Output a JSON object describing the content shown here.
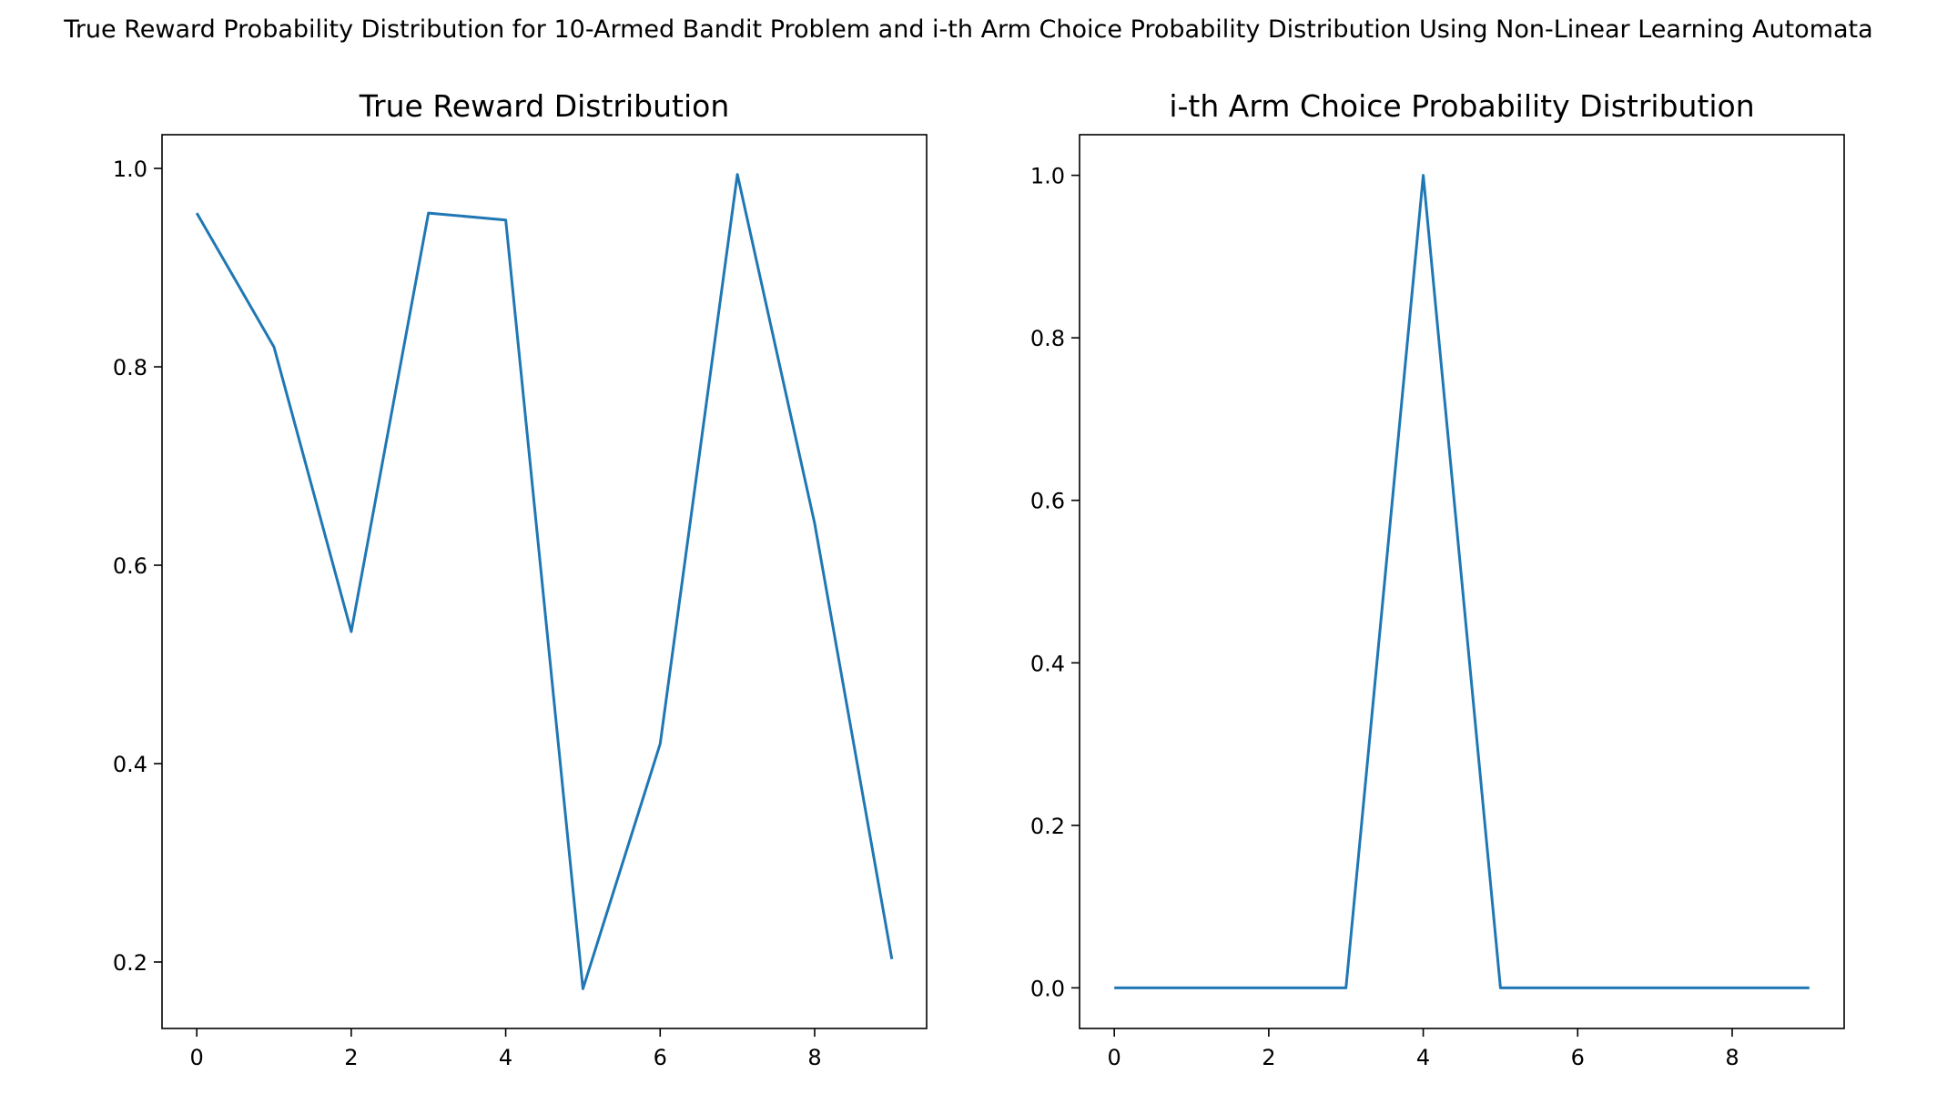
{
  "figure": {
    "title": "True Reward Probability Distribution for 10-Armed Bandit Problem and i-th Arm Choice Probability Distribution Using Non-Linear Learning Automata"
  },
  "chart_data": [
    {
      "type": "line",
      "title": "True Reward Distribution",
      "xlabel": "",
      "ylabel": "",
      "x": [
        0,
        1,
        2,
        3,
        4,
        5,
        6,
        7,
        8,
        9
      ],
      "series": [
        {
          "values": [
            0.955,
            0.82,
            0.533,
            0.955,
            0.948,
            0.173,
            0.42,
            0.994,
            0.642,
            0.203
          ],
          "color": "#1f77b4"
        }
      ],
      "xlim": [
        -0.45,
        9.45
      ],
      "ylim": [
        0.133,
        1.034
      ],
      "xticks": [
        0,
        2,
        4,
        6,
        8
      ],
      "xtick_labels": [
        "0",
        "2",
        "4",
        "6",
        "8"
      ],
      "yticks": [
        0.2,
        0.4,
        0.6,
        0.8,
        1.0
      ],
      "ytick_labels": [
        "0.2",
        "0.4",
        "0.6",
        "0.8",
        "1.0"
      ],
      "grid": false,
      "legend": "none"
    },
    {
      "type": "line",
      "title": "i-th Arm Choice Probability Distribution",
      "xlabel": "",
      "ylabel": "",
      "x": [
        0,
        1,
        2,
        3,
        4,
        5,
        6,
        7,
        8,
        9
      ],
      "series": [
        {
          "values": [
            0,
            0,
            0,
            0,
            1,
            0,
            0,
            0,
            0,
            0
          ],
          "color": "#1f77b4"
        }
      ],
      "xlim": [
        -0.45,
        9.45
      ],
      "ylim": [
        -0.05,
        1.05
      ],
      "xticks": [
        0,
        2,
        4,
        6,
        8
      ],
      "xtick_labels": [
        "0",
        "2",
        "4",
        "6",
        "8"
      ],
      "yticks": [
        0.0,
        0.2,
        0.4,
        0.6,
        0.8,
        1.0
      ],
      "ytick_labels": [
        "0.0",
        "0.2",
        "0.4",
        "0.6",
        "0.8",
        "1.0"
      ],
      "grid": false,
      "legend": "none"
    }
  ]
}
